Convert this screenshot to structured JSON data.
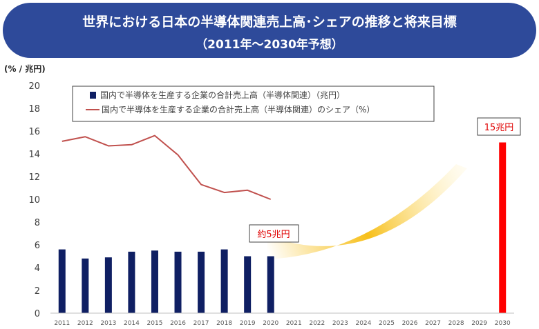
{
  "title": {
    "line1": "世界における日本の半導体関連売上高･シェアの推移と将来目標",
    "line2": "（2011年～2030年予想）"
  },
  "chart_data": {
    "type": "bar",
    "y_unit_label": "(% / 兆円)",
    "ylim": [
      0,
      20
    ],
    "y_ticks": [
      0,
      2,
      4,
      6,
      8,
      10,
      12,
      14,
      16,
      18,
      20
    ],
    "categories": [
      "2011",
      "2012",
      "2013",
      "2014",
      "2015",
      "2016",
      "2017",
      "2018",
      "2019",
      "2020",
      "2021",
      "2022",
      "2023",
      "2024",
      "2025",
      "2026",
      "2027",
      "2028",
      "2029",
      "2030"
    ],
    "series": [
      {
        "name": "国内で半導体を生産する企業の合計売上高（半導体関連）（兆円）",
        "kind": "bar",
        "color": "#0f1f63",
        "values": [
          5.6,
          4.8,
          4.9,
          5.4,
          5.5,
          5.4,
          5.4,
          5.6,
          5.0,
          5.0,
          null,
          null,
          null,
          null,
          null,
          null,
          null,
          null,
          null,
          null
        ]
      },
      {
        "name": "国内で半導体を生産する企業の合計売上高（半導体関連）のシェア（%）",
        "kind": "line",
        "color": "#c0504d",
        "values": [
          15.1,
          15.5,
          14.7,
          14.8,
          15.6,
          13.9,
          11.3,
          10.6,
          10.8,
          10.0,
          null,
          null,
          null,
          null,
          null,
          null,
          null,
          null,
          null,
          null
        ]
      },
      {
        "name": "",
        "kind": "target-bar",
        "color": "#ff0000",
        "values": [
          null,
          null,
          null,
          null,
          null,
          null,
          null,
          null,
          null,
          null,
          null,
          null,
          null,
          null,
          null,
          null,
          null,
          null,
          null,
          15.0
        ]
      }
    ],
    "annotations": [
      {
        "text": "約5兆円",
        "x": "2020",
        "y": 5.0
      },
      {
        "text": "15兆円",
        "x": "2030",
        "y": 15.0
      }
    ],
    "grid": false,
    "legend_position": "top-left"
  },
  "colors": {
    "banner": "#2e4a9a",
    "arrow": "#f6b800",
    "callout": "#e00000"
  }
}
